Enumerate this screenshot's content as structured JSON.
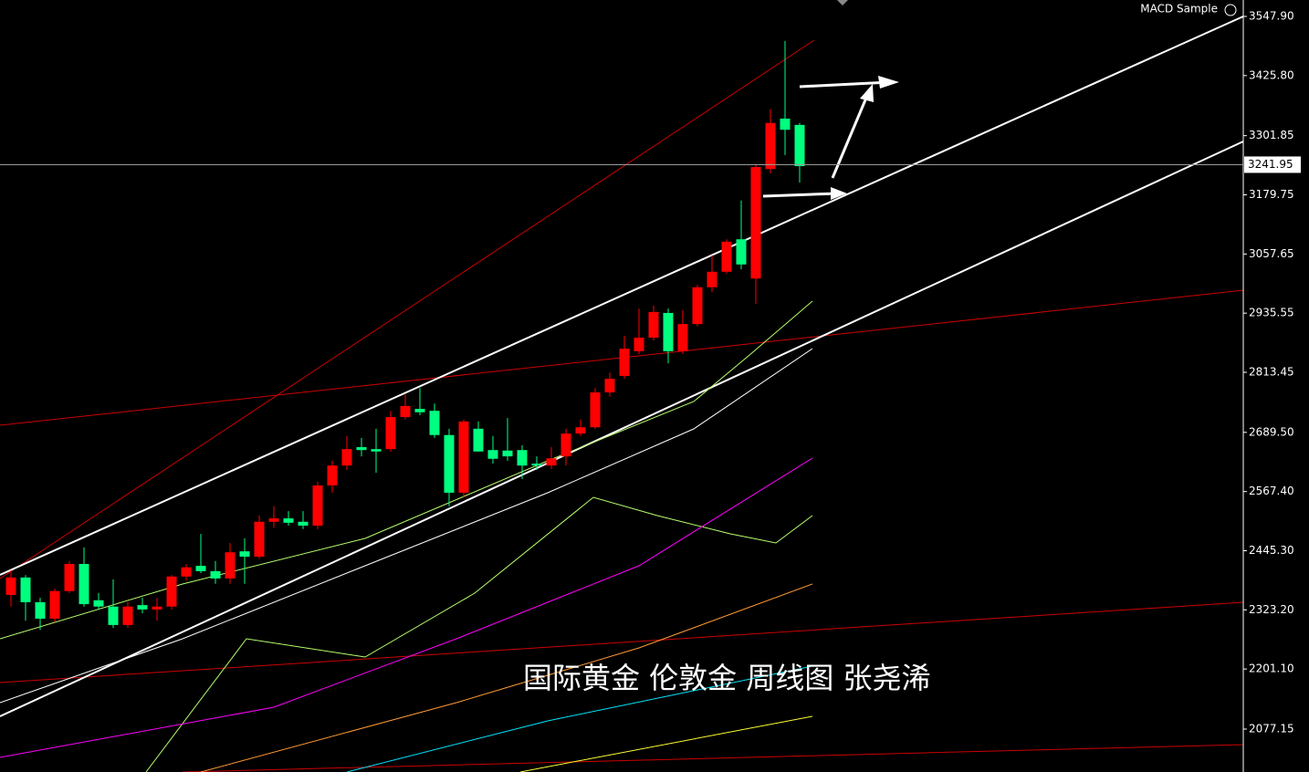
{
  "chart_data": {
    "type": "candlestick",
    "title": "MACD Sample",
    "annotation": "国际黄金 伦敦金  周线图 张尧浠",
    "open": [
      2354,
      2390,
      2339,
      2305,
      2362,
      2418,
      2343,
      2330,
      2292,
      2333,
      2324,
      2330,
      2392,
      2414,
      2403,
      2388,
      2444,
      2433,
      2505,
      2512,
      2505,
      2497,
      2580,
      2621,
      2659,
      2655,
      2655,
      2721,
      2738,
      2734,
      2684,
      2565,
      2697,
      2653,
      2652,
      2653,
      2625,
      2621,
      2640,
      2687,
      2700,
      2772,
      2806,
      2857,
      2885,
      2936,
      2857,
      2913,
      2989,
      3021,
      3088,
      3007,
      3233,
      3337,
      3324
    ],
    "high": [
      2405,
      2395,
      2348,
      2367,
      2424,
      2452,
      2358,
      2386,
      2339,
      2348,
      2348,
      2395,
      2418,
      2480,
      2424,
      2461,
      2471,
      2518,
      2537,
      2527,
      2527,
      2588,
      2631,
      2682,
      2678,
      2697,
      2734,
      2768,
      2781,
      2749,
      2697,
      2716,
      2712,
      2682,
      2719,
      2663,
      2640,
      2659,
      2697,
      2716,
      2781,
      2813,
      2889,
      2945,
      2951,
      2945,
      2942,
      2994,
      3055,
      3088,
      3168,
      3243,
      3356,
      3497,
      3328
    ],
    "low": [
      2330,
      2301,
      2282,
      2298,
      2358,
      2330,
      2324,
      2286,
      2286,
      2316,
      2301,
      2324,
      2384,
      2399,
      2377,
      2377,
      2377,
      2429,
      2493,
      2497,
      2490,
      2490,
      2565,
      2612,
      2640,
      2606,
      2650,
      2716,
      2725,
      2678,
      2537,
      2556,
      2650,
      2625,
      2631,
      2593,
      2612,
      2614,
      2621,
      2682,
      2697,
      2763,
      2800,
      2851,
      2879,
      2832,
      2851,
      2908,
      2979,
      3017,
      3026,
      2955,
      3224,
      3262,
      3205
    ],
    "close": [
      2390,
      2339,
      2305,
      2362,
      2418,
      2335,
      2330,
      2292,
      2330,
      2324,
      2330,
      2392,
      2411,
      2403,
      2388,
      2442,
      2433,
      2505,
      2512,
      2503,
      2497,
      2580,
      2621,
      2655,
      2653,
      2650,
      2721,
      2744,
      2731,
      2684,
      2565,
      2712,
      2650,
      2635,
      2640,
      2621,
      2621,
      2636,
      2687,
      2700,
      2772,
      2800,
      2862,
      2885,
      2938,
      2857,
      2913,
      2989,
      3021,
      3083,
      3036,
      3237,
      3328,
      3314,
      3239
    ],
    "up_color": "#ff0000",
    "down_color": "#00ff7f",
    "last_price": 3241.95,
    "ylim": [
      1988.6,
      3581.8
    ],
    "yticks": [
      {
        "value": 3547.9,
        "label": "3547.90"
      },
      {
        "value": 3425.8,
        "label": "3425.80"
      },
      {
        "value": 3301.85,
        "label": "3301.85"
      },
      {
        "value": 3179.75,
        "label": "3179.75"
      },
      {
        "value": 3057.65,
        "label": "3057.65"
      },
      {
        "value": 2935.55,
        "label": "2935.55"
      },
      {
        "value": 2813.45,
        "label": "2813.45"
      },
      {
        "value": 2689.5,
        "label": "2689.50"
      },
      {
        "value": 2567.4,
        "label": "2567.40"
      },
      {
        "value": 2445.3,
        "label": "2445.30"
      },
      {
        "value": 2323.2,
        "label": "2323.20"
      },
      {
        "value": 2201.1,
        "label": "2201.10"
      },
      {
        "value": 2077.15,
        "label": "2077.15"
      }
    ]
  }
}
